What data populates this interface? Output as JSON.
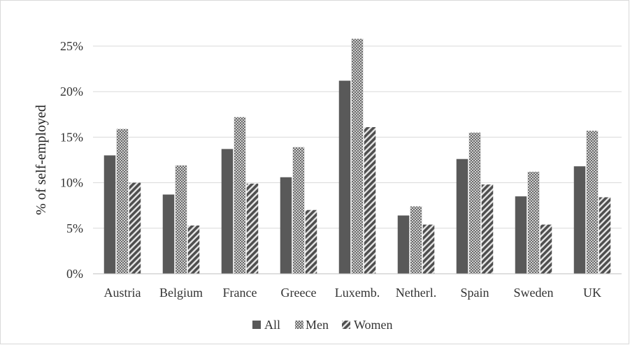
{
  "chart_data": {
    "type": "bar",
    "title": "",
    "xlabel": "",
    "ylabel": "% of self-employed",
    "ylim": [
      0,
      25
    ],
    "yticks": [
      "0%",
      "5%",
      "10%",
      "15%",
      "20%",
      "25%"
    ],
    "ytick_values": [
      0,
      5,
      10,
      15,
      20,
      25
    ],
    "grid": true,
    "legend_position": "bottom",
    "categories": [
      "Austria",
      "Belgium",
      "France",
      "Greece",
      "Luxemb.",
      "Netherl.",
      "Spain",
      "Sweden",
      "UK"
    ],
    "series": [
      {
        "name": "All",
        "pattern": "solid",
        "color": "#595959",
        "values": [
          13.0,
          8.7,
          13.7,
          10.6,
          21.2,
          6.4,
          12.6,
          8.5,
          11.8
        ]
      },
      {
        "name": "Men",
        "pattern": "checker",
        "color": "#7f7f7f",
        "values": [
          15.9,
          11.9,
          17.2,
          13.9,
          25.8,
          7.4,
          15.5,
          11.2,
          15.7
        ]
      },
      {
        "name": "Women",
        "pattern": "diagonal",
        "color": "#595959",
        "values": [
          10.0,
          5.3,
          9.9,
          7.0,
          16.1,
          5.4,
          9.8,
          5.4,
          8.4
        ]
      }
    ]
  }
}
